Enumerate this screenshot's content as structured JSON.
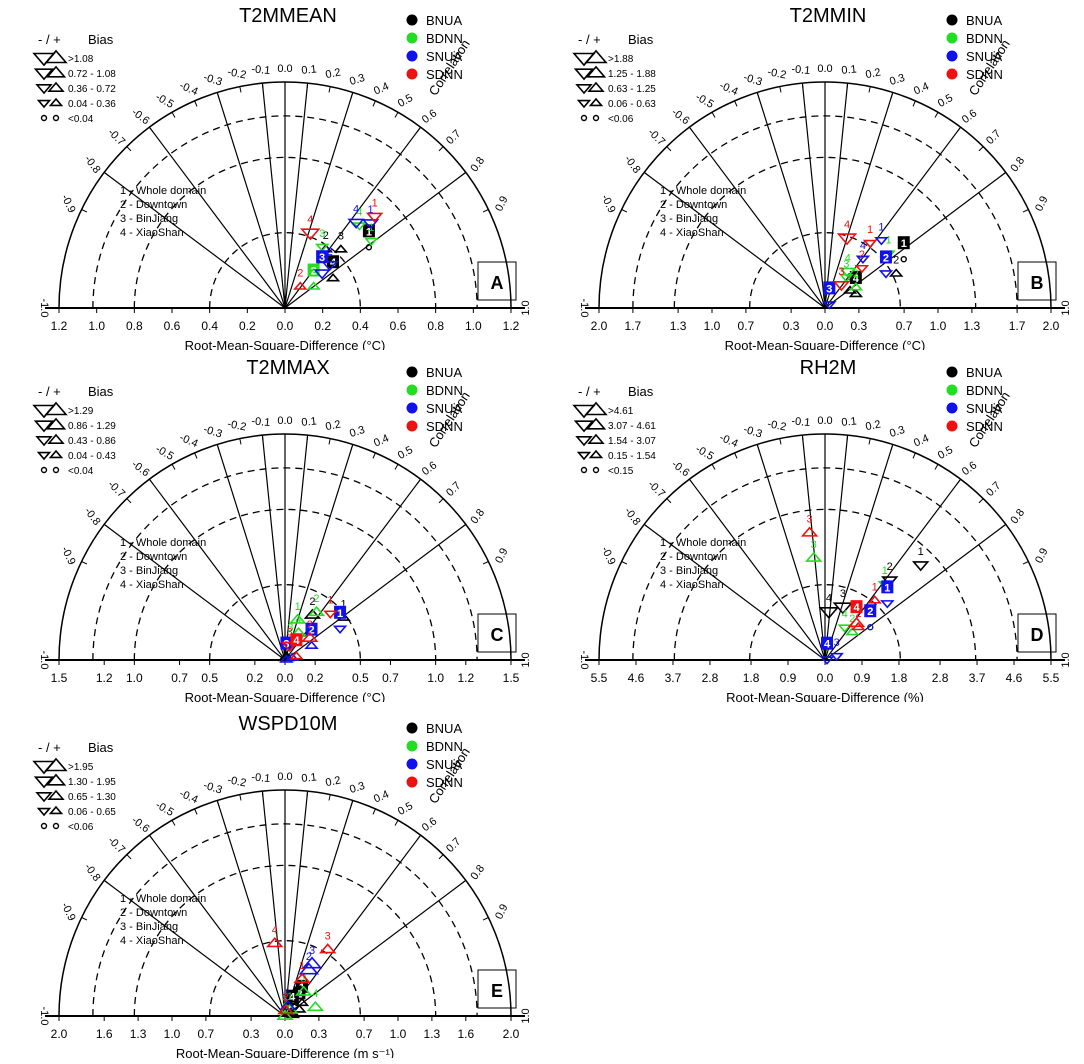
{
  "chart_data": [
    {
      "type": "scatter",
      "title": "T2MMEAN",
      "panel_letter": "A",
      "xlabel": "Root-Mean-Square-Difference (°C)",
      "rlabel": "Correlation",
      "rmsd_ticks": [
        "1.2",
        "1.0",
        "0.8",
        "0.6",
        "0.4",
        "0.2",
        "0.0",
        "0.2",
        "0.4",
        "0.6",
        "0.8",
        "1.0",
        "1.2"
      ],
      "bias_title": "Bias",
      "bias_sign": "- / +",
      "bias_classes": [
        ">1.08",
        "0.72 - 1.08",
        "0.36 - 0.72",
        "0.04 - 0.36",
        "<0.04"
      ],
      "regions": [
        "1 - Whole domain",
        "2 - Downtown",
        "3 - BinJiang",
        "4 - XiaoShan"
      ],
      "series": [
        {
          "name": "BNUA",
          "points": [
            {
              "region": 1,
              "x_rmsd": 0.55,
              "corr": 0.81,
              "bias_class": 5,
              "sign": "+",
              "boxed": true
            },
            {
              "region": 2,
              "x_rmsd": 0.38,
              "corr": 0.57,
              "bias_class": 4,
              "sign": "+"
            },
            {
              "region": 3,
              "x_rmsd": 0.43,
              "corr": 0.69,
              "bias_class": 4,
              "sign": "+"
            },
            {
              "region": 4,
              "x_rmsd": 0.3,
              "corr": 0.85,
              "bias_class": 4,
              "sign": "+",
              "boxed": true
            }
          ]
        },
        {
          "name": "BDNN",
          "points": [
            {
              "region": 1,
              "x_rmsd": 0.58,
              "corr": 0.79,
              "bias_class": 4,
              "sign": "-"
            },
            {
              "region": 2,
              "x_rmsd": 0.19,
              "corr": 0.8,
              "bias_class": 4,
              "sign": "+",
              "boxed": true
            },
            {
              "region": 3,
              "x_rmsd": 0.38,
              "corr": 0.52,
              "bias_class": 4,
              "sign": "-"
            },
            {
              "region": 4,
              "x_rmsd": 0.59,
              "corr": 0.67,
              "bias_class": 4,
              "sign": "-"
            }
          ]
        },
        {
          "name": "SNUA",
          "points": [
            {
              "region": 1,
              "x_rmsd": 0.64,
              "corr": 0.71,
              "bias_class": 3,
              "sign": "-"
            },
            {
              "region": 2,
              "x_rmsd": 0.33,
              "corr": 0.72,
              "bias_class": 3,
              "sign": "-"
            },
            {
              "region": 3,
              "x_rmsd": 0.27,
              "corr": 0.73,
              "bias_class": 3,
              "sign": "-",
              "boxed": true
            },
            {
              "region": 4,
              "x_rmsd": 0.59,
              "corr": 0.64,
              "bias_class": 3,
              "sign": "-"
            }
          ]
        },
        {
          "name": "SDNN",
          "points": [
            {
              "region": 1,
              "x_rmsd": 0.68,
              "corr": 0.7,
              "bias_class": 3,
              "sign": "-"
            },
            {
              "region": 2,
              "x_rmsd": 0.14,
              "corr": 0.58,
              "bias_class": 4,
              "sign": "+"
            },
            {
              "region": 4,
              "x_rmsd": 0.42,
              "corr": 0.32,
              "bias_class": 2,
              "sign": "-"
            }
          ]
        }
      ]
    },
    {
      "type": "scatter",
      "title": "T2MMIN",
      "panel_letter": "B",
      "xlabel": "Root-Mean-Square-Difference (°C)",
      "rlabel": "Correlation",
      "rmsd_ticks": [
        "2.0",
        "1.7",
        "1.3",
        "1.0",
        "0.7",
        "0.3",
        "0.0",
        "0.3",
        "0.7",
        "1.0",
        "1.3",
        "1.7",
        "2.0"
      ],
      "bias_title": "Bias",
      "bias_sign": "- / +",
      "bias_classes": [
        ">1.88",
        "1.25 - 1.88",
        "0.63 - 1.25",
        "0.06 - 0.63",
        "<0.06"
      ],
      "regions": [
        "1 - Whole domain",
        "2 - Downtown",
        "3 - BinJiang",
        "4 - XiaoShan"
      ],
      "series": [
        {
          "name": "BNUA",
          "points": [
            {
              "region": 1,
              "x_rmsd": 0.82,
              "corr": 0.85,
              "bias_class": 5,
              "sign": "+",
              "boxed": true
            },
            {
              "region": 2,
              "x_rmsd": 0.7,
              "corr": 0.9,
              "bias_class": 4,
              "sign": "+"
            },
            {
              "region": 3,
              "x_rmsd": 0.27,
              "corr": 0.82,
              "bias_class": 4,
              "sign": "+"
            },
            {
              "region": 4,
              "x_rmsd": 0.3,
              "corr": 0.91,
              "bias_class": 4,
              "sign": "+",
              "boxed": true
            }
          ]
        },
        {
          "name": "BDNN",
          "points": [
            {
              "region": 1,
              "x_rmsd": 0.74,
              "corr": 0.76,
              "bias_class": 4,
              "sign": "-"
            },
            {
              "region": 2,
              "x_rmsd": 0.33,
              "corr": 0.83,
              "bias_class": 4,
              "sign": "+"
            },
            {
              "region": 3,
              "x_rmsd": 0.33,
              "corr": 0.57,
              "bias_class": 4,
              "sign": "-"
            },
            {
              "region": 4,
              "x_rmsd": 0.38,
              "corr": 0.53,
              "bias_class": 3,
              "sign": "-"
            }
          ]
        },
        {
          "name": "SNUA",
          "points": [
            {
              "region": 1,
              "x_rmsd": 0.78,
              "corr": 0.64,
              "bias_class": 4,
              "sign": "-"
            },
            {
              "region": 2,
              "x_rmsd": 0.62,
              "corr": 0.87,
              "bias_class": 4,
              "sign": "-",
              "boxed": true
            },
            {
              "region": 3,
              "x_rmsd": 0.05,
              "corr": 0.77,
              "bias_class": 4,
              "sign": "-",
              "boxed": true
            },
            {
              "region": 4,
              "x_rmsd": 0.55,
              "corr": 0.61,
              "bias_class": 4,
              "sign": "-"
            }
          ]
        },
        {
          "name": "SDNN",
          "points": [
            {
              "region": 1,
              "x_rmsd": 0.7,
              "corr": 0.57,
              "bias_class": 4,
              "sign": "-"
            },
            {
              "region": 2,
              "x_rmsd": 0.48,
              "corr": 0.68,
              "bias_class": 4,
              "sign": "-"
            },
            {
              "region": 3,
              "x_rmsd": -0.25,
              "corr": 0.58,
              "bias_class": 3,
              "sign": "-"
            },
            {
              "region": 4,
              "x_rmsd": -0.65,
              "corr": 0.3,
              "bias_class": 2,
              "sign": "-"
            }
          ]
        }
      ]
    },
    {
      "type": "scatter",
      "title": "T2MMAX",
      "panel_letter": "C",
      "xlabel": "Root-Mean-Square-Difference (°C)",
      "rlabel": "Correlation",
      "rmsd_ticks": [
        "1.5",
        "1.2",
        "1.0",
        "0.7",
        "0.5",
        "0.2",
        "0.0",
        "0.2",
        "0.5",
        "0.7",
        "1.0",
        "1.2",
        "1.5"
      ],
      "bias_title": "Bias",
      "bias_sign": "- / +",
      "bias_classes": [
        ">1.29",
        "0.86 - 1.29",
        "0.43 - 0.86",
        "0.04 - 0.43",
        "<0.04"
      ],
      "regions": [
        "1 - Whole domain",
        "2 - Downtown",
        "3 - BinJiang",
        "4 - XiaoShan"
      ],
      "series": [
        {
          "name": "BNUA",
          "points": [
            {
              "region": 1,
              "x_rmsd": 0.48,
              "corr": 0.81,
              "bias_class": 4,
              "sign": "+"
            },
            {
              "region": 2,
              "x_rmsd": 0.35,
              "corr": 0.52,
              "bias_class": 3,
              "sign": "+"
            },
            {
              "region": 3,
              "x_rmsd": 0.02,
              "corr": 0.6,
              "bias_class": 4,
              "sign": "+"
            },
            {
              "region": 4,
              "x_rmsd": 0.02,
              "corr": 0.46,
              "bias_class": 3,
              "sign": "+"
            }
          ]
        },
        {
          "name": "BDNN",
          "points": [
            {
              "region": 1,
              "x_rmsd": 0.28,
              "corr": 0.3,
              "bias_class": 3,
              "sign": "+"
            },
            {
              "region": 2,
              "x_rmsd": 0.38,
              "corr": 0.55,
              "bias_class": 3,
              "sign": "+"
            },
            {
              "region": 3,
              "x_rmsd": -0.13,
              "corr": 0.28,
              "bias_class": 4,
              "sign": "-"
            },
            {
              "region": 4,
              "x_rmsd": -0.2,
              "corr": 0.45,
              "bias_class": 3,
              "sign": "+"
            }
          ]
        },
        {
          "name": "SNUA",
          "points": [
            {
              "region": 1,
              "x_rmsd": 0.42,
              "corr": 0.87,
              "bias_class": 4,
              "sign": "-",
              "boxed": true
            },
            {
              "region": 2,
              "x_rmsd": 0.2,
              "corr": 0.88,
              "bias_class": 4,
              "sign": "+",
              "boxed": true
            },
            {
              "region": 3,
              "x_rmsd": 0.01,
              "corr": 0.95,
              "bias_class": 4,
              "sign": "+",
              "boxed": true
            },
            {
              "region": 4,
              "x_rmsd": -0.05,
              "corr": 0.95,
              "bias_class": 4,
              "sign": "+"
            }
          ]
        },
        {
          "name": "SDNN",
          "points": [
            {
              "region": 1,
              "x_rmsd": 0.43,
              "corr": 0.7,
              "bias_class": 4,
              "sign": "-"
            },
            {
              "region": 2,
              "x_rmsd": 0.22,
              "corr": 0.75,
              "bias_class": 3,
              "sign": "+"
            },
            {
              "region": 3,
              "x_rmsd": -0.1,
              "corr": 0.31,
              "bias_class": 3,
              "sign": "-"
            },
            {
              "region": 4,
              "x_rmsd": -0.08,
              "corr": 0.95,
              "bias_class": 4,
              "sign": "+",
              "boxed": true
            }
          ]
        }
      ]
    },
    {
      "type": "scatter",
      "title": "RH2M",
      "panel_letter": "D",
      "xlabel": "Root-Mean-Square-Difference (%)",
      "rlabel": "Correlation",
      "rmsd_ticks": [
        "5.5",
        "4.6",
        "3.7",
        "2.8",
        "1.8",
        "0.9",
        "0.0",
        "0.9",
        "1.8",
        "2.8",
        "3.7",
        "4.6",
        "5.5"
      ],
      "bias_title": "Bias",
      "bias_sign": "- / +",
      "bias_classes": [
        ">4.61",
        "3.07 - 4.61",
        "1.54 - 3.07",
        "0.15 - 1.54",
        "<0.15"
      ],
      "regions": [
        "1 - Whole domain",
        "2 - Downtown",
        "3 - BinJiang",
        "4 - XiaoShan"
      ],
      "series": [
        {
          "name": "BNUA",
          "points": [
            {
              "region": 1,
              "x_rmsd": 3.28,
              "corr": 0.71,
              "bias_class": 3,
              "sign": "-"
            },
            {
              "region": 2,
              "x_rmsd": 2.5,
              "corr": 0.63,
              "bias_class": 3,
              "sign": "-"
            },
            {
              "region": 3,
              "x_rmsd": 1.36,
              "corr": 0.32,
              "bias_class": 2,
              "sign": "-"
            },
            {
              "region": 4,
              "x_rmsd": -1.18,
              "corr": 0.08,
              "bias_class": 2,
              "sign": "-"
            }
          ]
        },
        {
          "name": "BDNN",
          "points": [
            {
              "region": 1,
              "x_rmsd": 2.35,
              "corr": 0.62,
              "bias_class": 4,
              "sign": "-"
            },
            {
              "region": 2,
              "x_rmsd": 0.95,
              "corr": 0.7,
              "bias_class": 4,
              "sign": "+"
            },
            {
              "region": 3,
              "x_rmsd": -2.5,
              "corr": -0.11,
              "bias_class": 3,
              "sign": "+"
            },
            {
              "region": 4,
              "x_rmsd": 0.92,
              "corr": 0.52,
              "bias_class": 4,
              "sign": "-"
            }
          ]
        },
        {
          "name": "SNUA",
          "points": [
            {
              "region": 1,
              "x_rmsd": 2.05,
              "corr": 0.74,
              "bias_class": 4,
              "sign": "-",
              "boxed": true
            },
            {
              "region": 2,
              "x_rmsd": 1.36,
              "corr": 0.81,
              "bias_class": 5,
              "sign": "+",
              "boxed": true
            },
            {
              "region": 3,
              "x_rmsd": 0.3,
              "corr": 0.95,
              "bias_class": 4,
              "sign": "-"
            },
            {
              "region": 4,
              "x_rmsd": 0.05,
              "corr": 0.99,
              "bias_class": 4,
              "sign": "-",
              "boxed": true
            }
          ]
        },
        {
          "name": "SDNN",
          "points": [
            {
              "region": 1,
              "x_rmsd": 1.89,
              "corr": 0.64,
              "bias_class": 4,
              "sign": "+"
            },
            {
              "region": 2,
              "x_rmsd": 1.14,
              "corr": 0.71,
              "bias_class": 4,
              "sign": "+"
            },
            {
              "region": 3,
              "x_rmsd": -3.12,
              "corr": -0.12,
              "bias_class": 3,
              "sign": "+"
            },
            {
              "region": 4,
              "x_rmsd": 1.18,
              "corr": 0.65,
              "bias_class": 3,
              "sign": "+",
              "boxed": true
            }
          ]
        }
      ]
    },
    {
      "type": "scatter",
      "title": "WSPD10M",
      "panel_letter": "E",
      "xlabel": "Root-Mean-Square-Difference (m s⁻¹)",
      "rlabel": "Correlation",
      "rmsd_ticks": [
        "2.0",
        "1.6",
        "1.3",
        "1.0",
        "0.7",
        "0.3",
        "0.0",
        "0.3",
        "0.7",
        "1.0",
        "1.3",
        "1.6",
        "2.0"
      ],
      "bias_title": "Bias",
      "bias_sign": "- / +",
      "bias_classes": [
        ">1.95",
        "1.30 - 1.95",
        "0.65 - 1.30",
        "0.06 - 0.65",
        "<0.06"
      ],
      "regions": [
        "1 - Whole domain",
        "2 - Downtown",
        "3 - BinJiang",
        "4 - XiaoShan"
      ],
      "series": [
        {
          "name": "BNUA",
          "points": [
            {
              "region": 1,
              "x_rmsd": 0.19,
              "corr": 0.79,
              "bias_class": 4,
              "sign": "+",
              "boxed": true
            },
            {
              "region": 2,
              "x_rmsd": 0.14,
              "corr": 0.91,
              "bias_class": 4,
              "sign": "+",
              "boxed": true
            },
            {
              "region": 3,
              "x_rmsd": -0.07,
              "corr": 0.99,
              "bias_class": 4,
              "sign": "+",
              "boxed": true
            },
            {
              "region": 4,
              "x_rmsd": 0.07,
              "corr": 0.91,
              "bias_class": 4,
              "sign": "+",
              "boxed": true
            }
          ]
        },
        {
          "name": "BDNN",
          "points": [
            {
              "region": 1,
              "x_rmsd": 0.07,
              "corr": 0.62,
              "bias_class": 3,
              "sign": "+"
            },
            {
              "region": 2,
              "x_rmsd": 0.0,
              "corr": 0.86,
              "bias_class": 3,
              "sign": "+"
            },
            {
              "region": 3,
              "x_rmsd": 0.27,
              "corr": 0.61,
              "bias_class": 3,
              "sign": "+"
            },
            {
              "region": 4,
              "x_rmsd": -0.28,
              "corr": 0.96,
              "bias_class": 3,
              "sign": "+"
            }
          ]
        },
        {
          "name": "SNUA",
          "points": [
            {
              "region": 1,
              "x_rmsd": 0.09,
              "corr": 0.28,
              "bias_class": 3,
              "sign": "+"
            },
            {
              "region": 2,
              "x_rmsd": 0.46,
              "corr": 0.46,
              "bias_class": 2,
              "sign": "+"
            },
            {
              "region": 3,
              "x_rmsd": 0.52,
              "corr": 0.46,
              "bias_class": 2,
              "sign": "+"
            }
          ]
        },
        {
          "name": "SDNN",
          "points": [
            {
              "region": 1,
              "x_rmsd": 0.36,
              "corr": 0.42,
              "bias_class": 3,
              "sign": "+"
            },
            {
              "region": 2,
              "x_rmsd": 0.05,
              "corr": 0.15,
              "bias_class": 3,
              "sign": "+"
            },
            {
              "region": 3,
              "x_rmsd": 0.7,
              "corr": 0.54,
              "bias_class": 3,
              "sign": "+"
            },
            {
              "region": 4,
              "x_rmsd": -0.65,
              "corr": -0.14,
              "bias_class": 3,
              "sign": "+"
            }
          ]
        }
      ]
    }
  ],
  "series_colors": {
    "BNUA": "#000000",
    "BDNN": "#22dd22",
    "SNUA": "#1111ee",
    "SDNN": "#ee1111"
  },
  "corr_ticks": [
    "-1.0",
    "-0.9",
    "-0.8",
    "-0.7",
    "-0.6",
    "-0.5",
    "-0.4",
    "-0.3",
    "-0.2",
    "-0.1",
    "0.0",
    "0.1",
    "0.2",
    "0.3",
    "0.4",
    "0.5",
    "0.6",
    "0.7",
    "0.8",
    "0.9",
    "1.0"
  ]
}
